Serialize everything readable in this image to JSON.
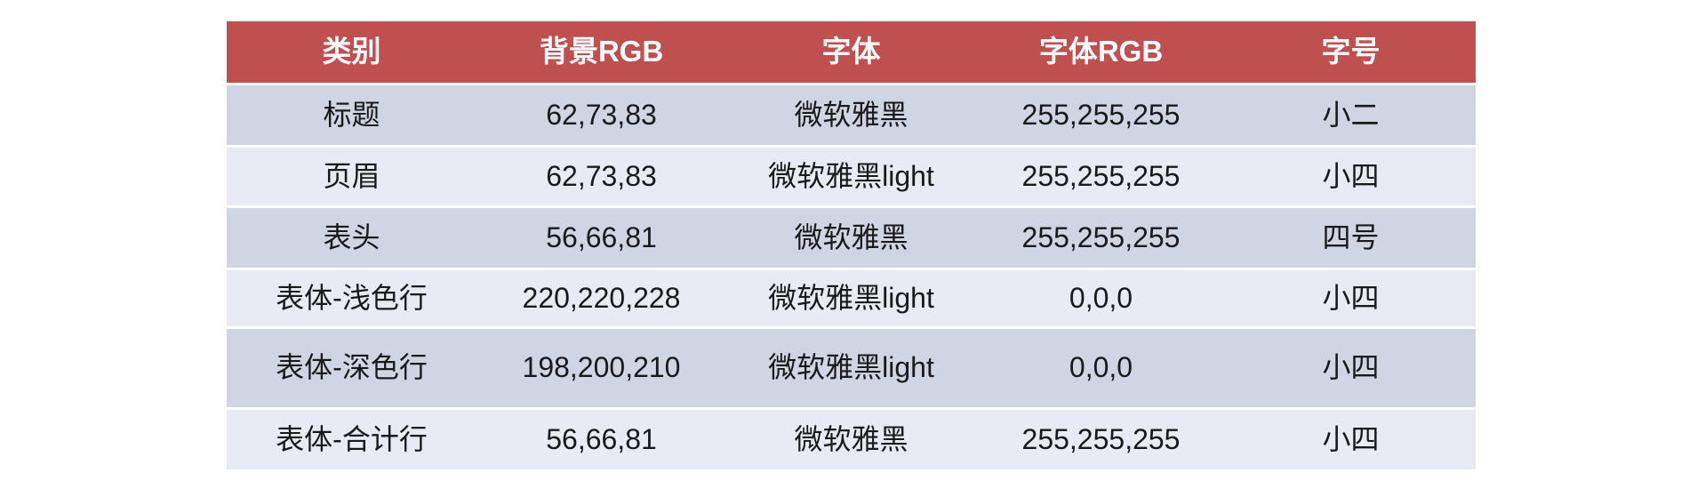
{
  "colors": {
    "header_bg": "#c04f4f",
    "header_text": "#ffffff",
    "row_dark_bg": "#cfd5e3",
    "row_light_bg": "#e8ebf3",
    "body_text": "#1a1a1a",
    "page_bg": "#ffffff"
  },
  "table": {
    "columns": [
      "类别",
      "背景RGB",
      "字体",
      "字体RGB",
      "字号"
    ],
    "rows": [
      [
        "标题",
        "62,73,83",
        "微软雅黑",
        "255,255,255",
        "小二"
      ],
      [
        "页眉",
        "62,73,83",
        "微软雅黑light",
        "255,255,255",
        "小四"
      ],
      [
        "表头",
        "56,66,81",
        "微软雅黑",
        "255,255,255",
        "四号"
      ],
      [
        "表体-浅色行",
        "220,220,228",
        "微软雅黑light",
        "0,0,0",
        "小四"
      ],
      [
        "表体-深色行",
        "198,200,210",
        "微软雅黑light",
        "0,0,0",
        "小四"
      ],
      [
        "表体-合计行",
        "56,66,81",
        "微软雅黑",
        "255,255,255",
        "小四"
      ]
    ],
    "row_shades": [
      "dark",
      "light",
      "dark",
      "light",
      "dark",
      "light"
    ]
  },
  "chart_data": {
    "type": "table",
    "title": "",
    "columns": [
      "类别",
      "背景RGB",
      "字体",
      "字体RGB",
      "字号"
    ],
    "rows": [
      [
        "标题",
        "62,73,83",
        "微软雅黑",
        "255,255,255",
        "小二"
      ],
      [
        "页眉",
        "62,73,83",
        "微软雅黑light",
        "255,255,255",
        "小四"
      ],
      [
        "表头",
        "56,66,81",
        "微软雅黑",
        "255,255,255",
        "四号"
      ],
      [
        "表体-浅色行",
        "220,220,228",
        "微软雅黑light",
        "0,0,0",
        "小四"
      ],
      [
        "表体-深色行",
        "198,200,210",
        "微软雅黑light",
        "0,0,0",
        "小四"
      ],
      [
        "表体-合计行",
        "56,66,81",
        "微软雅黑",
        "255,255,255",
        "小四"
      ]
    ],
    "layout_hints": {
      "header_bg": "#c04f4f",
      "banded_rows": true,
      "band_colors": [
        "#cfd5e3",
        "#e8ebf3"
      ],
      "alignment": "center"
    }
  }
}
